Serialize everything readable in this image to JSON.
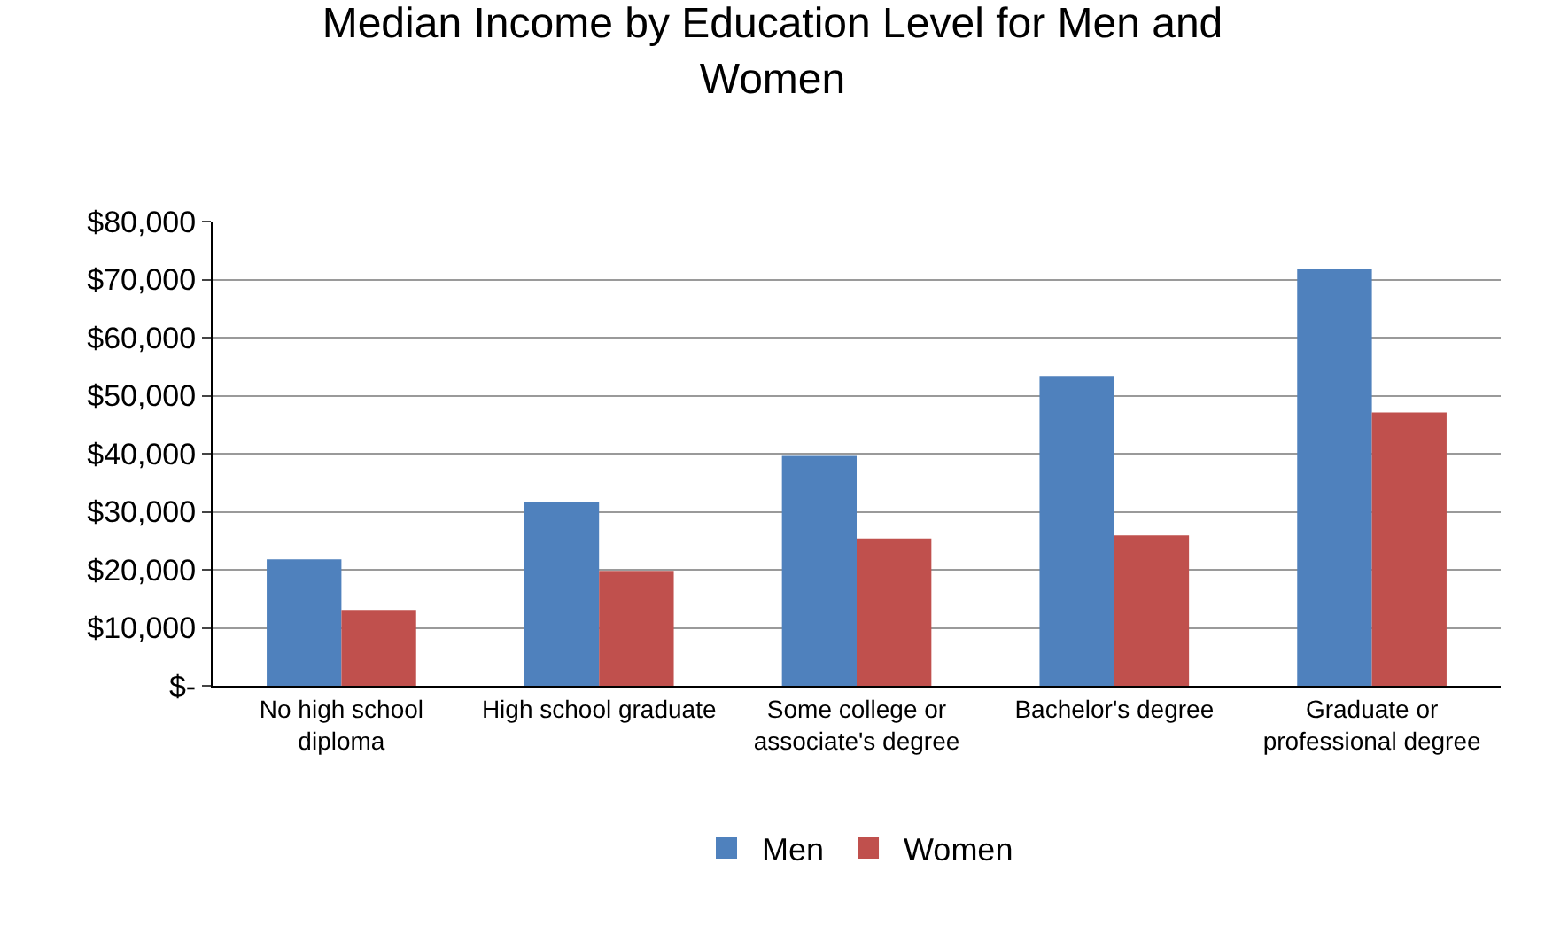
{
  "chart_data": {
    "type": "bar",
    "title": "Median Income by Education Level for Men and Women",
    "categories": [
      "No high school diploma",
      "High school graduate",
      "Some college or associate's degree",
      "Bachelor's degree",
      "Graduate or professional degree"
    ],
    "series": [
      {
        "name": "Men",
        "color": "#4f81bd",
        "values": [
          21800,
          31700,
          39600,
          53400,
          71800
        ]
      },
      {
        "name": "Women",
        "color": "#c0504d",
        "values": [
          13100,
          19800,
          25400,
          25900,
          47100
        ]
      }
    ],
    "ylim": [
      0,
      80000
    ],
    "yticks": [
      {
        "value": 0,
        "label": "$-"
      },
      {
        "value": 10000,
        "label": "$10,000"
      },
      {
        "value": 20000,
        "label": "$20,000"
      },
      {
        "value": 30000,
        "label": "$30,000"
      },
      {
        "value": 40000,
        "label": "$40,000"
      },
      {
        "value": 50000,
        "label": "$50,000"
      },
      {
        "value": 60000,
        "label": "$60,000"
      },
      {
        "value": 70000,
        "label": "$70,000"
      },
      {
        "value": 80000,
        "label": "$80,000"
      }
    ],
    "grid": "y",
    "legend": "bottom"
  }
}
